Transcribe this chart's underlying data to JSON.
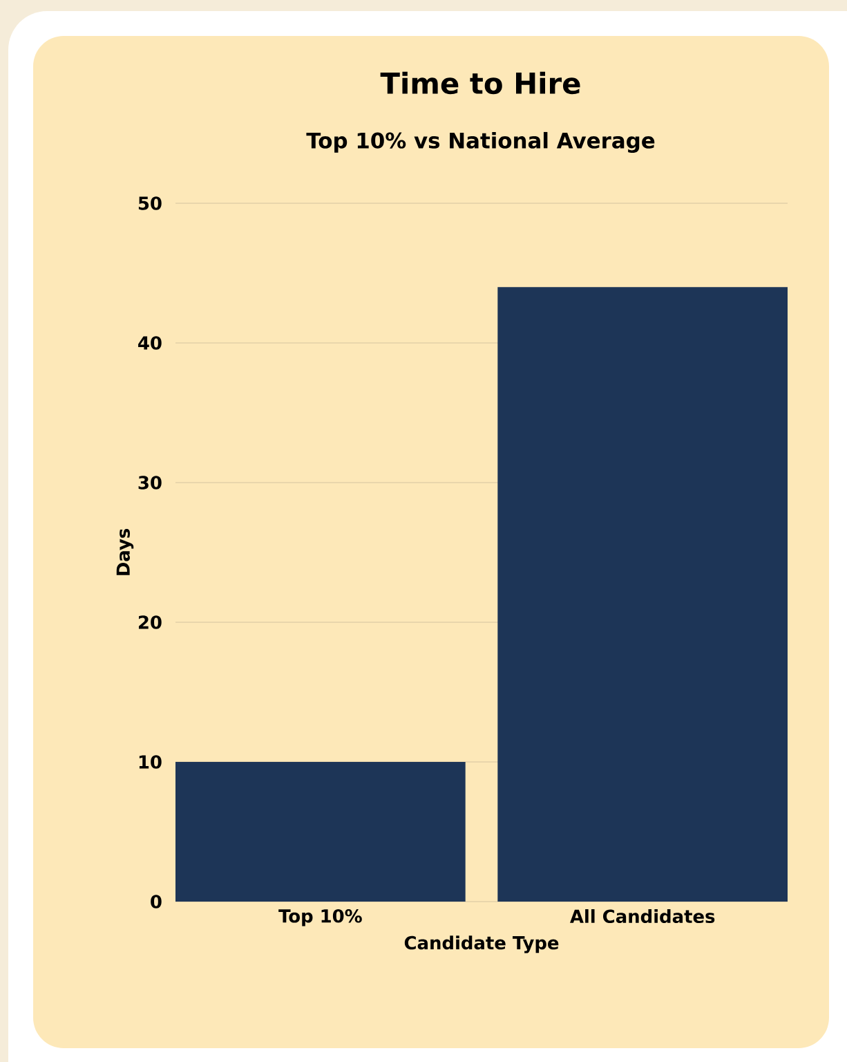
{
  "chart_data": {
    "type": "bar",
    "title": "Time to Hire",
    "subtitle": "Top 10% vs National Average",
    "xlabel": "Candidate Type",
    "ylabel": "Days",
    "categories": [
      "Top 10%",
      "All Candidates"
    ],
    "values": [
      10,
      44
    ],
    "color": "#1d3557",
    "ylim": [
      0,
      50
    ],
    "yticks": [
      0,
      10,
      20,
      30,
      40,
      50
    ],
    "grid": "y"
  }
}
